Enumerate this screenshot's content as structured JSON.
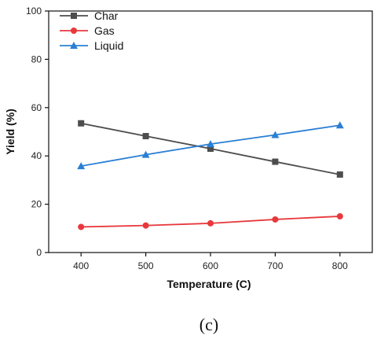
{
  "chart_data": {
    "type": "line",
    "xlabel": "Temperature (C)",
    "ylabel": "Yield (%)",
    "x": [
      400,
      500,
      600,
      700,
      800
    ],
    "xlim": [
      350,
      850
    ],
    "ylim": [
      0,
      100
    ],
    "xticks": [
      400,
      500,
      600,
      700,
      800
    ],
    "yticks": [
      0,
      20,
      40,
      60,
      80,
      100
    ],
    "legend_position": "top-left",
    "series": [
      {
        "name": "Char",
        "values": [
          53.5,
          48.2,
          43.0,
          37.6,
          32.3
        ],
        "color": "#4d4d4d",
        "marker": "square"
      },
      {
        "name": "Gas",
        "values": [
          10.6,
          11.2,
          12.1,
          13.7,
          15.0
        ],
        "color": "#e8383b",
        "marker": "circle"
      },
      {
        "name": "Liquid",
        "values": [
          35.8,
          40.5,
          44.9,
          48.7,
          52.7
        ],
        "color": "#2a7fd4",
        "marker": "triangle"
      }
    ]
  },
  "panel_label": "(c)"
}
